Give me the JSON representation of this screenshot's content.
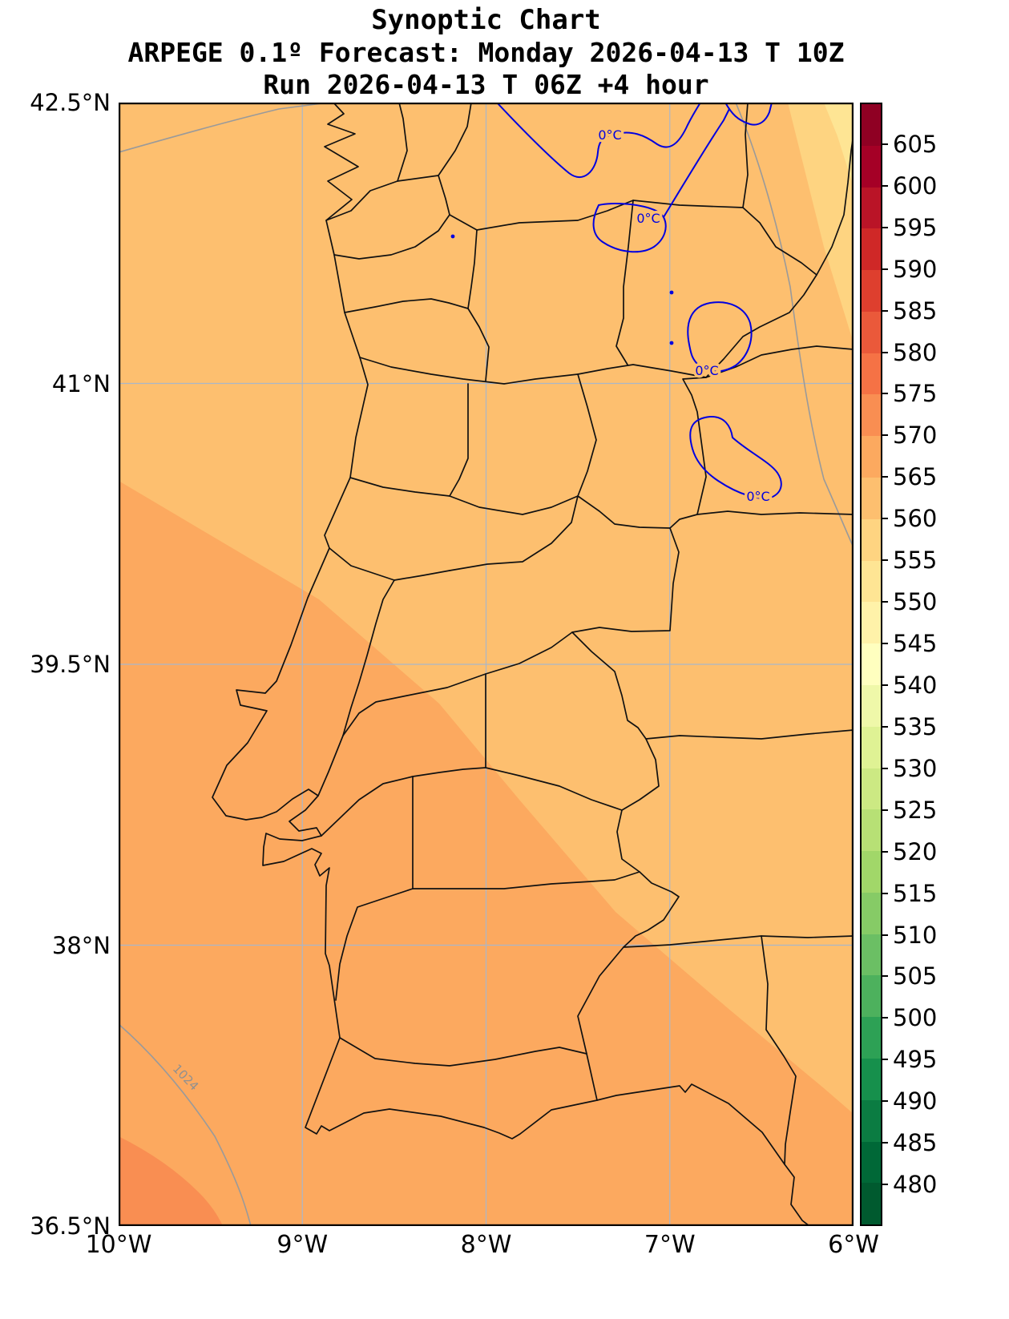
{
  "header": {
    "title": "Synoptic Chart",
    "subtitle": "ARPEGE 0.1º Forecast: Monday 2026-04-13 T 10Z",
    "run_info": "Run 2026-04-13 T 06Z +4 hour"
  },
  "axes": {
    "y_ticks": [
      "42.5°N",
      "41°N",
      "39.5°N",
      "38°N",
      "36.5°N"
    ],
    "x_ticks": [
      "10°W",
      "9°W",
      "8°W",
      "7°W",
      "6°W"
    ]
  },
  "colorbar": {
    "ticks": [
      605,
      600,
      595,
      590,
      585,
      580,
      575,
      570,
      565,
      560,
      555,
      550,
      545,
      540,
      535,
      530,
      525,
      520,
      515,
      510,
      505,
      500,
      495,
      490,
      485,
      480
    ],
    "colors_bottom_to_top": [
      "#005a2f",
      "#006837",
      "#0b7c42",
      "#16904c",
      "#2da155",
      "#4db15d",
      "#6bbf64",
      "#86cb66",
      "#a1d769",
      "#b7e075",
      "#cce983",
      "#dff294",
      "#eff8a9",
      "#ffffbf",
      "#fff2a9",
      "#fee594",
      "#fed481",
      "#fdbf6f",
      "#fca95f",
      "#f98e52",
      "#f57245",
      "#ea593a",
      "#de3f2e",
      "#cf2827",
      "#ba1427",
      "#a50026",
      "#8f0023"
    ]
  },
  "map": {
    "contour_labels": {
      "isotherm": "0°C",
      "isobar": "1024"
    },
    "colors": {
      "field_base": "#fdbf6f",
      "field_darker": "#fca95f",
      "field_darkest": "#f98e52",
      "field_lighter": "#fed481",
      "field_lightest": "#fee594",
      "boundary_lines": "#111111",
      "isotherm_line": "#0000e0",
      "isobar_line": "#9a9a9a",
      "gridline": "#a9b6c9"
    }
  },
  "chart_data": {
    "type": "heatmap",
    "title": "Synoptic Chart",
    "subtitle": "ARPEGE 0.1º Forecast: Monday 2026-04-13 T 10Z",
    "run": "Run 2026-04-13 T 06Z +4 hour",
    "region": "Portugal and western Spain",
    "x_axis": {
      "label": "longitude",
      "ticks": [
        "10°W",
        "9°W",
        "8°W",
        "7°W",
        "6°W"
      ],
      "range_deg": [
        -10,
        -6
      ]
    },
    "y_axis": {
      "label": "latitude",
      "ticks": [
        "36.5°N",
        "38°N",
        "39.5°N",
        "41°N",
        "42.5°N"
      ],
      "range_deg": [
        36.5,
        42.5
      ]
    },
    "gridlines": {
      "lat_deg": [
        38,
        39.5,
        41
      ],
      "lon_deg": [
        -9,
        -8,
        -7
      ]
    },
    "colorbar": {
      "min": 480,
      "max": 605,
      "step": 5,
      "tick_values": [
        480,
        485,
        490,
        495,
        500,
        505,
        510,
        515,
        520,
        525,
        530,
        535,
        540,
        545,
        550,
        555,
        560,
        565,
        570,
        575,
        580,
        585,
        590,
        595,
        600,
        605
      ],
      "colormap": "RdYlGn reversed (dark green low to dark red high)",
      "position": "right"
    },
    "filled_field_regions": [
      {
        "area": "most of the domain",
        "value_band": [
          560,
          565
        ]
      },
      {
        "area": "southwest ocean and southern/western Portugal",
        "value_band": [
          565,
          570
        ]
      },
      {
        "area": "far southwest corner",
        "value_band": [
          570,
          575
        ]
      },
      {
        "area": "northeast Spain",
        "value_band": [
          555,
          560
        ]
      },
      {
        "area": "extreme northeast corner",
        "value_band": [
          550,
          555
        ]
      }
    ],
    "contour_overlays": [
      {
        "name": "zero-degree isotherm",
        "value": "0°C",
        "color": "blue",
        "label_count": 4,
        "location": "northern Portugal / northwest and west-central Spain"
      },
      {
        "name": "isobar",
        "value": 1024,
        "color": "gray",
        "location": "southwest corner of map"
      }
    ]
  }
}
